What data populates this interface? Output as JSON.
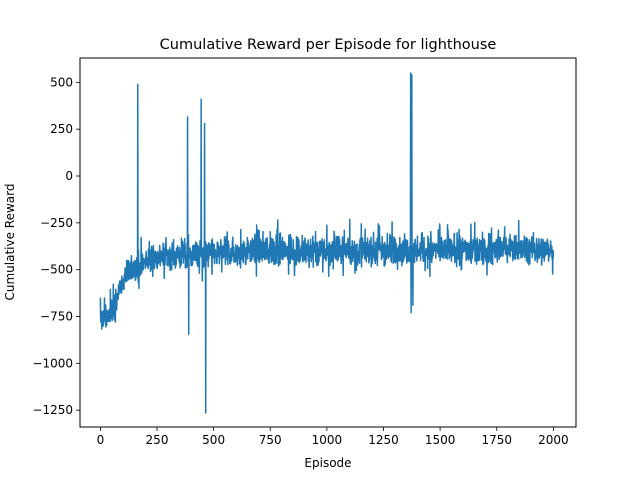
{
  "chart_data": {
    "type": "line",
    "title": "Cumulative Reward per Episode for lighthouse",
    "xlabel": "Episode",
    "ylabel": "Cumulative Reward",
    "xlim": [
      -90,
      2100
    ],
    "ylim": [
      -1340,
      630
    ],
    "xticks": [
      0,
      250,
      500,
      750,
      1000,
      1250,
      1500,
      1750,
      2000
    ],
    "yticks": [
      500,
      250,
      0,
      -250,
      -500,
      -750,
      -1000,
      -1250
    ],
    "grid": false,
    "legend": "none",
    "series": [
      {
        "color": "#1f77b4",
        "x_start": 0,
        "x_end": 2000,
        "envelope_x": [
          0,
          20,
          40,
          60,
          80,
          100,
          130,
          160,
          200,
          250,
          300,
          400,
          500,
          600,
          700,
          800,
          900,
          1000,
          1100,
          1200,
          1300,
          1400,
          1500,
          1600,
          1700,
          1800,
          1900,
          2000
        ],
        "envelope_low": [
          -850,
          -830,
          -820,
          -790,
          -700,
          -640,
          -610,
          -590,
          -560,
          -530,
          -520,
          -520,
          -510,
          -510,
          -500,
          -510,
          -510,
          -500,
          -500,
          -500,
          -500,
          -500,
          -500,
          -500,
          -500,
          -490,
          -490,
          -490
        ],
        "envelope_high": [
          -690,
          -680,
          -660,
          -620,
          -540,
          -470,
          -420,
          -390,
          -360,
          -330,
          -320,
          -320,
          -320,
          -300,
          -290,
          -290,
          -300,
          -300,
          -290,
          -290,
          -290,
          -290,
          -290,
          -290,
          -290,
          -290,
          -290,
          -300
        ],
        "spikes": [
          {
            "x": 165,
            "y": 490
          },
          {
            "x": 170,
            "y": -600
          },
          {
            "x": 385,
            "y": 315
          },
          {
            "x": 390,
            "y": -845
          },
          {
            "x": 445,
            "y": 410
          },
          {
            "x": 450,
            "y": -560
          },
          {
            "x": 460,
            "y": 280
          },
          {
            "x": 465,
            "y": -1265
          },
          {
            "x": 1370,
            "y": 550
          },
          {
            "x": 1372,
            "y": -730
          },
          {
            "x": 1375,
            "y": 540
          },
          {
            "x": 1380,
            "y": -690
          }
        ]
      }
    ]
  }
}
